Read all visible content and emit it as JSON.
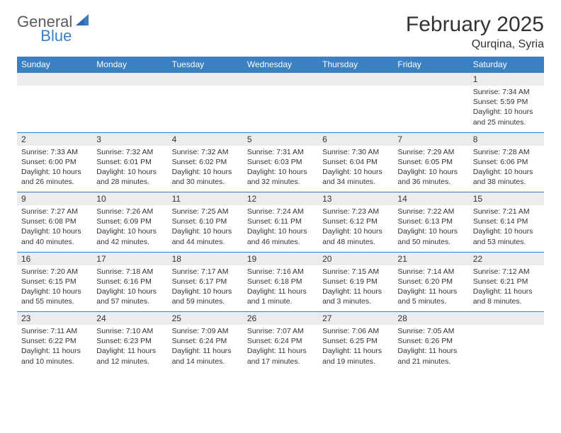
{
  "brand": {
    "part1": "General",
    "part2": "Blue"
  },
  "title": "February 2025",
  "subtitle": "Qurqina, Syria",
  "colors": {
    "header_bg": "#3b7fc4",
    "header_fg": "#ffffff",
    "daynum_bg": "#ececec",
    "border": "#3b7fc4",
    "text": "#333333",
    "brand_gray": "#5a5a5a",
    "brand_blue": "#3b7fc4"
  },
  "day_names": [
    "Sunday",
    "Monday",
    "Tuesday",
    "Wednesday",
    "Thursday",
    "Friday",
    "Saturday"
  ],
  "weeks": [
    [
      {
        "n": "",
        "lines": []
      },
      {
        "n": "",
        "lines": []
      },
      {
        "n": "",
        "lines": []
      },
      {
        "n": "",
        "lines": []
      },
      {
        "n": "",
        "lines": []
      },
      {
        "n": "",
        "lines": []
      },
      {
        "n": "1",
        "lines": [
          "Sunrise: 7:34 AM",
          "Sunset: 5:59 PM",
          "Daylight: 10 hours",
          "and 25 minutes."
        ]
      }
    ],
    [
      {
        "n": "2",
        "lines": [
          "Sunrise: 7:33 AM",
          "Sunset: 6:00 PM",
          "Daylight: 10 hours",
          "and 26 minutes."
        ]
      },
      {
        "n": "3",
        "lines": [
          "Sunrise: 7:32 AM",
          "Sunset: 6:01 PM",
          "Daylight: 10 hours",
          "and 28 minutes."
        ]
      },
      {
        "n": "4",
        "lines": [
          "Sunrise: 7:32 AM",
          "Sunset: 6:02 PM",
          "Daylight: 10 hours",
          "and 30 minutes."
        ]
      },
      {
        "n": "5",
        "lines": [
          "Sunrise: 7:31 AM",
          "Sunset: 6:03 PM",
          "Daylight: 10 hours",
          "and 32 minutes."
        ]
      },
      {
        "n": "6",
        "lines": [
          "Sunrise: 7:30 AM",
          "Sunset: 6:04 PM",
          "Daylight: 10 hours",
          "and 34 minutes."
        ]
      },
      {
        "n": "7",
        "lines": [
          "Sunrise: 7:29 AM",
          "Sunset: 6:05 PM",
          "Daylight: 10 hours",
          "and 36 minutes."
        ]
      },
      {
        "n": "8",
        "lines": [
          "Sunrise: 7:28 AM",
          "Sunset: 6:06 PM",
          "Daylight: 10 hours",
          "and 38 minutes."
        ]
      }
    ],
    [
      {
        "n": "9",
        "lines": [
          "Sunrise: 7:27 AM",
          "Sunset: 6:08 PM",
          "Daylight: 10 hours",
          "and 40 minutes."
        ]
      },
      {
        "n": "10",
        "lines": [
          "Sunrise: 7:26 AM",
          "Sunset: 6:09 PM",
          "Daylight: 10 hours",
          "and 42 minutes."
        ]
      },
      {
        "n": "11",
        "lines": [
          "Sunrise: 7:25 AM",
          "Sunset: 6:10 PM",
          "Daylight: 10 hours",
          "and 44 minutes."
        ]
      },
      {
        "n": "12",
        "lines": [
          "Sunrise: 7:24 AM",
          "Sunset: 6:11 PM",
          "Daylight: 10 hours",
          "and 46 minutes."
        ]
      },
      {
        "n": "13",
        "lines": [
          "Sunrise: 7:23 AM",
          "Sunset: 6:12 PM",
          "Daylight: 10 hours",
          "and 48 minutes."
        ]
      },
      {
        "n": "14",
        "lines": [
          "Sunrise: 7:22 AM",
          "Sunset: 6:13 PM",
          "Daylight: 10 hours",
          "and 50 minutes."
        ]
      },
      {
        "n": "15",
        "lines": [
          "Sunrise: 7:21 AM",
          "Sunset: 6:14 PM",
          "Daylight: 10 hours",
          "and 53 minutes."
        ]
      }
    ],
    [
      {
        "n": "16",
        "lines": [
          "Sunrise: 7:20 AM",
          "Sunset: 6:15 PM",
          "Daylight: 10 hours",
          "and 55 minutes."
        ]
      },
      {
        "n": "17",
        "lines": [
          "Sunrise: 7:18 AM",
          "Sunset: 6:16 PM",
          "Daylight: 10 hours",
          "and 57 minutes."
        ]
      },
      {
        "n": "18",
        "lines": [
          "Sunrise: 7:17 AM",
          "Sunset: 6:17 PM",
          "Daylight: 10 hours",
          "and 59 minutes."
        ]
      },
      {
        "n": "19",
        "lines": [
          "Sunrise: 7:16 AM",
          "Sunset: 6:18 PM",
          "Daylight: 11 hours",
          "and 1 minute."
        ]
      },
      {
        "n": "20",
        "lines": [
          "Sunrise: 7:15 AM",
          "Sunset: 6:19 PM",
          "Daylight: 11 hours",
          "and 3 minutes."
        ]
      },
      {
        "n": "21",
        "lines": [
          "Sunrise: 7:14 AM",
          "Sunset: 6:20 PM",
          "Daylight: 11 hours",
          "and 5 minutes."
        ]
      },
      {
        "n": "22",
        "lines": [
          "Sunrise: 7:12 AM",
          "Sunset: 6:21 PM",
          "Daylight: 11 hours",
          "and 8 minutes."
        ]
      }
    ],
    [
      {
        "n": "23",
        "lines": [
          "Sunrise: 7:11 AM",
          "Sunset: 6:22 PM",
          "Daylight: 11 hours",
          "and 10 minutes."
        ]
      },
      {
        "n": "24",
        "lines": [
          "Sunrise: 7:10 AM",
          "Sunset: 6:23 PM",
          "Daylight: 11 hours",
          "and 12 minutes."
        ]
      },
      {
        "n": "25",
        "lines": [
          "Sunrise: 7:09 AM",
          "Sunset: 6:24 PM",
          "Daylight: 11 hours",
          "and 14 minutes."
        ]
      },
      {
        "n": "26",
        "lines": [
          "Sunrise: 7:07 AM",
          "Sunset: 6:24 PM",
          "Daylight: 11 hours",
          "and 17 minutes."
        ]
      },
      {
        "n": "27",
        "lines": [
          "Sunrise: 7:06 AM",
          "Sunset: 6:25 PM",
          "Daylight: 11 hours",
          "and 19 minutes."
        ]
      },
      {
        "n": "28",
        "lines": [
          "Sunrise: 7:05 AM",
          "Sunset: 6:26 PM",
          "Daylight: 11 hours",
          "and 21 minutes."
        ]
      },
      {
        "n": "",
        "lines": []
      }
    ]
  ]
}
